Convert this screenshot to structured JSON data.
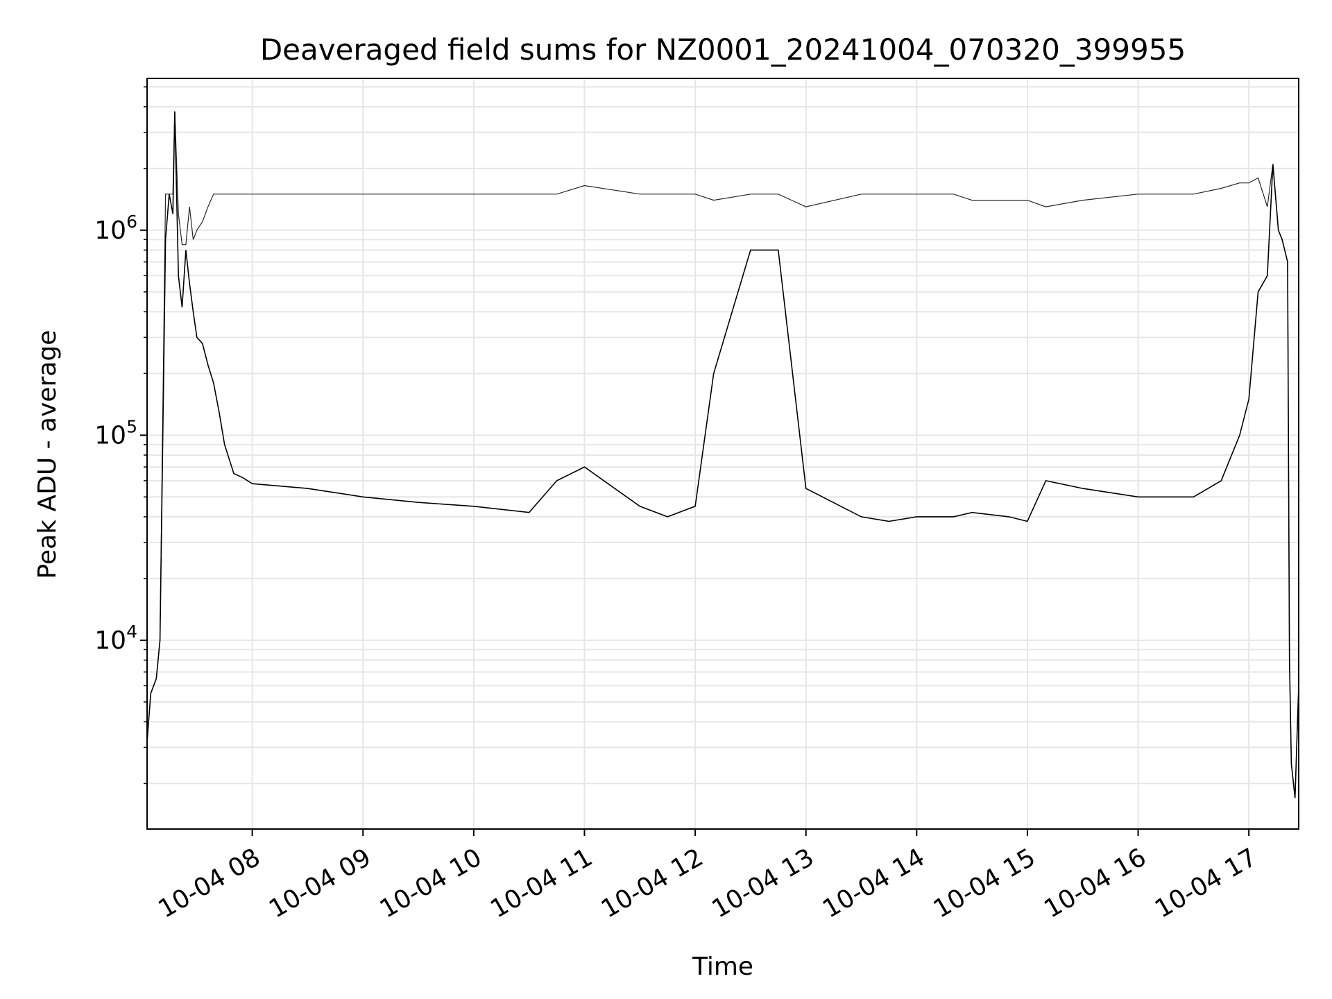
{
  "chart_data": {
    "type": "line",
    "title": "Deaveraged field sums for NZ0001_20241004_070320_399955",
    "xlabel": "Time",
    "ylabel": "Peak ADU - average",
    "yscale": "log",
    "ylim": [
      1200,
      5500000
    ],
    "xlim": [
      "2024-10-04 07:03",
      "2024-10-04 17:27"
    ],
    "grid": true,
    "grid_minor": true,
    "line_color": "#000000",
    "grid_color": "#e6e6e6",
    "x_ticks": [
      {
        "value": "2024-10-04 08:00",
        "label": "10-04 08"
      },
      {
        "value": "2024-10-04 09:00",
        "label": "10-04 09"
      },
      {
        "value": "2024-10-04 10:00",
        "label": "10-04 10"
      },
      {
        "value": "2024-10-04 11:00",
        "label": "10-04 11"
      },
      {
        "value": "2024-10-04 12:00",
        "label": "10-04 12"
      },
      {
        "value": "2024-10-04 13:00",
        "label": "10-04 13"
      },
      {
        "value": "2024-10-04 14:00",
        "label": "10-04 14"
      },
      {
        "value": "2024-10-04 15:00",
        "label": "10-04 15"
      },
      {
        "value": "2024-10-04 16:00",
        "label": "10-04 16"
      },
      {
        "value": "2024-10-04 17:00",
        "label": "10-04 17"
      }
    ],
    "y_ticks": [
      {
        "value": 10000,
        "base": "10",
        "exp": "4"
      },
      {
        "value": 100000,
        "base": "10",
        "exp": "5"
      },
      {
        "value": 1000000,
        "base": "10",
        "exp": "6"
      }
    ],
    "series": [
      {
        "x": [
          "2024-10-04 07:03",
          "2024-10-04 07:05",
          "2024-10-04 07:08",
          "2024-10-04 07:10",
          "2024-10-04 07:13",
          "2024-10-04 07:15",
          "2024-10-04 07:17",
          "2024-10-04 07:18",
          "2024-10-04 07:20",
          "2024-10-04 07:22",
          "2024-10-04 07:24",
          "2024-10-04 07:26",
          "2024-10-04 07:28",
          "2024-10-04 07:30",
          "2024-10-04 07:33",
          "2024-10-04 07:36",
          "2024-10-04 07:39",
          "2024-10-04 07:42",
          "2024-10-04 07:45",
          "2024-10-04 07:50",
          "2024-10-04 07:55",
          "2024-10-04 08:00",
          "2024-10-04 08:30",
          "2024-10-04 09:00",
          "2024-10-04 09:30",
          "2024-10-04 10:00",
          "2024-10-04 10:30",
          "2024-10-04 10:45",
          "2024-10-04 11:00",
          "2024-10-04 11:30",
          "2024-10-04 11:45",
          "2024-10-04 12:00",
          "2024-10-04 12:10",
          "2024-10-04 12:30",
          "2024-10-04 12:45",
          "2024-10-04 13:00",
          "2024-10-04 13:30",
          "2024-10-04 13:45",
          "2024-10-04 14:00",
          "2024-10-04 14:20",
          "2024-10-04 14:30",
          "2024-10-04 14:50",
          "2024-10-04 15:00",
          "2024-10-04 15:10",
          "2024-10-04 15:30",
          "2024-10-04 16:00",
          "2024-10-04 16:30",
          "2024-10-04 16:45",
          "2024-10-04 16:55",
          "2024-10-04 17:00",
          "2024-10-04 17:05",
          "2024-10-04 17:10",
          "2024-10-04 17:13",
          "2024-10-04 17:16",
          "2024-10-04 17:18",
          "2024-10-04 17:21",
          "2024-10-04 17:22",
          "2024-10-04 17:23",
          "2024-10-04 17:25",
          "2024-10-04 17:27"
        ],
        "y": [
          3200,
          5500,
          6500,
          10000,
          900000,
          1500000,
          1200000,
          3800000,
          600000,
          420000,
          800000,
          550000,
          400000,
          300000,
          280000,
          220000,
          180000,
          130000,
          90000,
          65000,
          62000,
          58000,
          55000,
          50000,
          47000,
          45000,
          42000,
          60000,
          70000,
          45000,
          40000,
          45000,
          200000,
          800000,
          800000,
          55000,
          40000,
          38000,
          40000,
          40000,
          42000,
          40000,
          38000,
          60000,
          55000,
          50000,
          50000,
          60000,
          100000,
          150000,
          500000,
          600000,
          2100000,
          1000000,
          900000,
          700000,
          8000,
          2500,
          1700,
          6000
        ],
        "envelope_high": [
          3200,
          5500,
          6500,
          10000,
          1500000,
          1500000,
          1500000,
          3800000,
          1200000,
          850000,
          850000,
          1300000,
          900000,
          1000000,
          1100000,
          1300000,
          1500000,
          1500000,
          1500000,
          1500000,
          1500000,
          1500000,
          1500000,
          1500000,
          1500000,
          1500000,
          1500000,
          1500000,
          1650000,
          1500000,
          1500000,
          1500000,
          1400000,
          1500000,
          1500000,
          1300000,
          1500000,
          1500000,
          1500000,
          1500000,
          1400000,
          1400000,
          1400000,
          1300000,
          1400000,
          1500000,
          1500000,
          1600000,
          1700000,
          1700000,
          1800000,
          1300000,
          2100000,
          1000000,
          900000,
          700000,
          8000,
          2500,
          1700,
          6000
        ]
      }
    ]
  }
}
